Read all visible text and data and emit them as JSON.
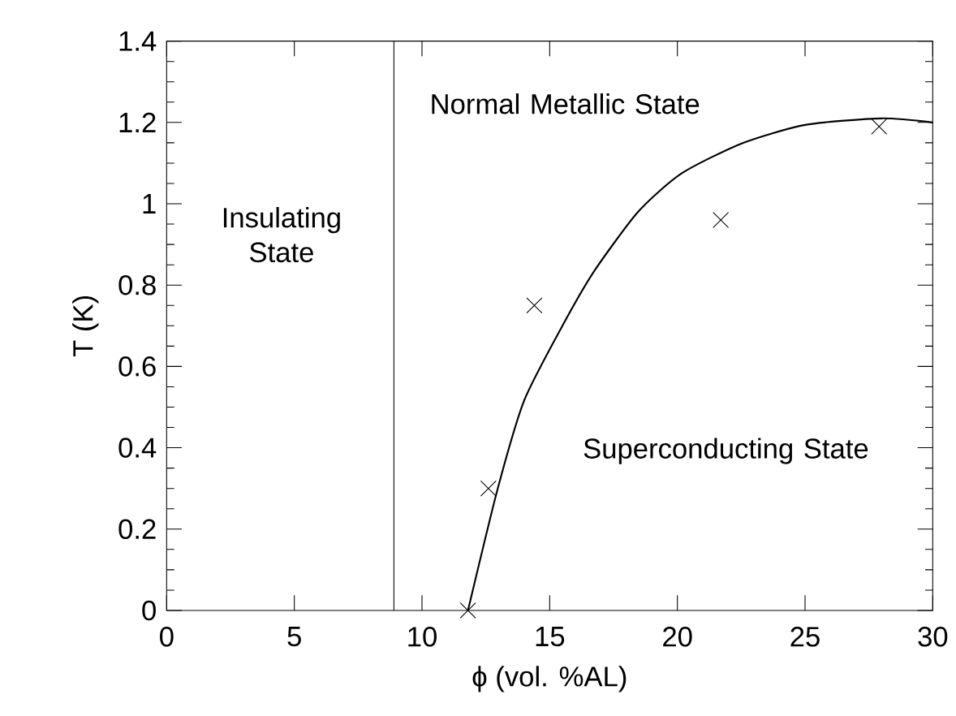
{
  "chart_data": {
    "type": "scatter",
    "xlabel": "ϕ (vol. %AL)",
    "ylabel": "T (K)",
    "xlim": [
      0,
      30
    ],
    "ylim": [
      0,
      1.4
    ],
    "xticks": [
      0,
      5,
      10,
      15,
      20,
      25,
      30
    ],
    "yticks": [
      0,
      0.2,
      0.4,
      0.6,
      0.8,
      1,
      1.2,
      1.4
    ],
    "series": [
      {
        "marker": "cross",
        "color": "#000000",
        "x": [
          11.8,
          12.6,
          14.4,
          21.7,
          27.9
        ],
        "values": [
          0,
          0.3,
          0.75,
          0.96,
          1.19
        ]
      },
      {
        "type": "line",
        "marker": "none",
        "line_style": "solid",
        "color": "#000000",
        "x": [
          11.8,
          12.95,
          14.0,
          15.5,
          16.75,
          18.46,
          20.15,
          22.5,
          25.0,
          28.0,
          30.0
        ],
        "values": [
          0,
          0.296,
          0.516,
          0.7,
          0.835,
          0.98,
          1.074,
          1.148,
          1.194,
          1.21,
          1.2
        ]
      }
    ],
    "ref_lines": [
      {
        "axis": "x",
        "value": 8.9,
        "color": "#000000",
        "line_style": "solid"
      }
    ],
    "annotations": [
      "Insulating State",
      "Normal Metallic State",
      "Superconducting State"
    ]
  }
}
